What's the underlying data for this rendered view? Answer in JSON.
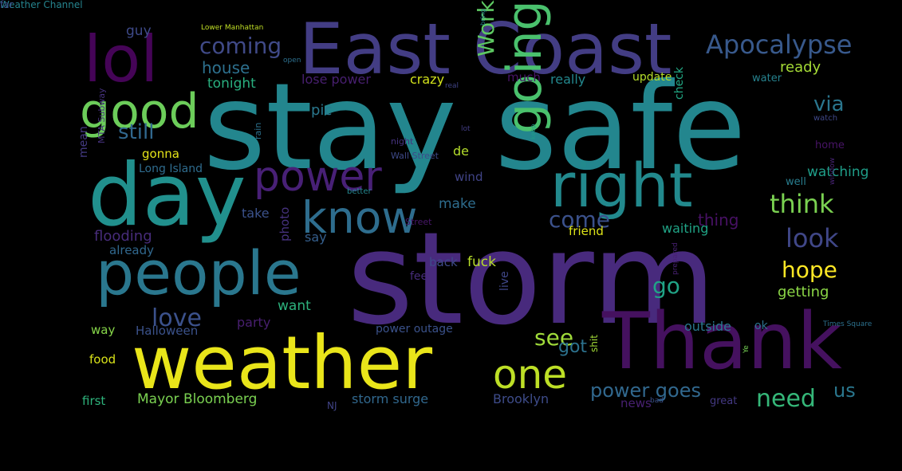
{
  "words": [
    {
      "text": "storm",
      "color": "#482a7d"
    },
    {
      "text": "stay safe",
      "color": "#23868e"
    },
    {
      "text": "East Coast",
      "color": "#433d84"
    },
    {
      "text": "weather",
      "color": "#e9e51a"
    },
    {
      "text": "Thank",
      "color": "#45115f"
    },
    {
      "text": "day",
      "color": "#21908d"
    },
    {
      "text": "people",
      "color": "#2a778e"
    },
    {
      "text": "lol",
      "color": "#450457"
    },
    {
      "text": "right",
      "color": "#22898d"
    },
    {
      "text": "good",
      "color": "#6ccd5a"
    },
    {
      "text": "going",
      "color": "#4ac16d"
    },
    {
      "text": "know",
      "color": "#2e6d8e"
    },
    {
      "text": "power",
      "color": "#482076"
    },
    {
      "text": "one",
      "color": "#bddf26"
    },
    {
      "text": "Apocalypse",
      "color": "#38598c"
    },
    {
      "text": "coming",
      "color": "#404a88"
    },
    {
      "text": "love",
      "color": "#3b518b"
    },
    {
      "text": "Work",
      "color": "#5ec962"
    },
    {
      "text": "think",
      "color": "#7ad151"
    },
    {
      "text": "look",
      "color": "#404788"
    },
    {
      "text": "hope",
      "color": "#fde725"
    },
    {
      "text": "power goes",
      "color": "#31688e"
    },
    {
      "text": "need",
      "color": "#35b779"
    },
    {
      "text": "see",
      "color": "#9fda3a"
    },
    {
      "text": "got",
      "color": "#2c728e"
    },
    {
      "text": "go",
      "color": "#20a386"
    },
    {
      "text": "us",
      "color": "#2a778e"
    },
    {
      "text": "via",
      "color": "#2a768e"
    },
    {
      "text": "come",
      "color": "#3b518b"
    },
    {
      "text": "still",
      "color": "#31688e"
    },
    {
      "text": "house",
      "color": "#2d708e"
    },
    {
      "text": "tonight",
      "color": "#29af7f"
    },
    {
      "text": "guy",
      "color": "#3e4a89"
    },
    {
      "text": "lose power",
      "color": "#481f70"
    },
    {
      "text": "crazy",
      "color": "#d2e21b"
    },
    {
      "text": "much",
      "color": "#481467"
    },
    {
      "text": "really",
      "color": "#23888e"
    },
    {
      "text": "update",
      "color": "#b5de2b"
    },
    {
      "text": "ready",
      "color": "#a5db36"
    },
    {
      "text": "water",
      "color": "#26828e"
    },
    {
      "text": "pic",
      "color": "#2a788e"
    },
    {
      "text": "de",
      "color": "#b5de2b"
    },
    {
      "text": "gonna",
      "color": "#e5e419"
    },
    {
      "text": "Long Island",
      "color": "#2f6c8e"
    },
    {
      "text": "wind",
      "color": "#414487"
    },
    {
      "text": "make",
      "color": "#2e6d8e"
    },
    {
      "text": "take",
      "color": "#3b528b"
    },
    {
      "text": "say",
      "color": "#355f8d"
    },
    {
      "text": "thing",
      "color": "#471164"
    },
    {
      "text": "waiting",
      "color": "#20a486"
    },
    {
      "text": "friend",
      "color": "#dde318"
    },
    {
      "text": "flooding",
      "color": "#472c7a"
    },
    {
      "text": "already",
      "color": "#31688e"
    },
    {
      "text": "photo",
      "color": "#46327e"
    },
    {
      "text": "back",
      "color": "#3e4989"
    },
    {
      "text": "feel",
      "color": "#472c7a"
    },
    {
      "text": "fuck",
      "color": "#b8de29"
    },
    {
      "text": "want",
      "color": "#2db27d"
    },
    {
      "text": "party",
      "color": "#481f70"
    },
    {
      "text": "live",
      "color": "#3f4788"
    },
    {
      "text": "way",
      "color": "#86d549"
    },
    {
      "text": "Halloween",
      "color": "#3b528b"
    },
    {
      "text": "food",
      "color": "#d8e219"
    },
    {
      "text": "first",
      "color": "#2eb37c"
    },
    {
      "text": "Mayor Bloomberg",
      "color": "#7ad151"
    },
    {
      "text": "storm surge",
      "color": "#31688e"
    },
    {
      "text": "Brooklyn",
      "color": "#3e4c8a"
    },
    {
      "text": "power outage",
      "color": "#3b528b"
    },
    {
      "text": "outside",
      "color": "#2a768e"
    },
    {
      "text": "ok",
      "color": "#2c728e"
    },
    {
      "text": "getting",
      "color": "#8bd646"
    },
    {
      "text": "watching",
      "color": "#1f9e89"
    },
    {
      "text": "well",
      "color": "#287d8e"
    },
    {
      "text": "check",
      "color": "#22a884"
    },
    {
      "text": "home",
      "color": "#481467"
    },
    {
      "text": "watch",
      "color": "#3f4889"
    },
    {
      "text": "better",
      "color": "#24878e"
    },
    {
      "text": "Street",
      "color": "#481769"
    },
    {
      "text": "Wall Street",
      "color": "#3e4a89"
    },
    {
      "text": "night",
      "color": "#46337f"
    },
    {
      "text": "rain",
      "color": "#2c728e"
    },
    {
      "text": "lot",
      "color": "#433e85"
    },
    {
      "text": "keep",
      "color": "#1f9a8a"
    },
    {
      "text": "mean",
      "color": "#443a83"
    },
    {
      "text": "MTA Subway",
      "color": "#46327e"
    },
    {
      "text": "Lower Manhattan",
      "color": "#c0df25"
    },
    {
      "text": "open",
      "color": "#2d708e"
    },
    {
      "text": "real",
      "color": "#414487"
    },
    {
      "text": "bring",
      "color": "#26818e"
    },
    {
      "text": "window",
      "color": "#482475"
    },
    {
      "text": "prepared",
      "color": "#482173"
    },
    {
      "text": "Times Square",
      "color": "#2c718e"
    },
    {
      "text": "Ye",
      "color": "#75d054"
    },
    {
      "text": "news",
      "color": "#482071"
    },
    {
      "text": "bad",
      "color": "#3b528b"
    },
    {
      "text": "great",
      "color": "#443983"
    },
    {
      "text": "NJ",
      "color": "#414487"
    },
    {
      "text": "shit",
      "color": "#a2da37"
    },
    {
      "text": "Weather Channel",
      "color": "#25848e"
    },
    {
      "text": "far",
      "color": "#3d4d8a"
    }
  ]
}
